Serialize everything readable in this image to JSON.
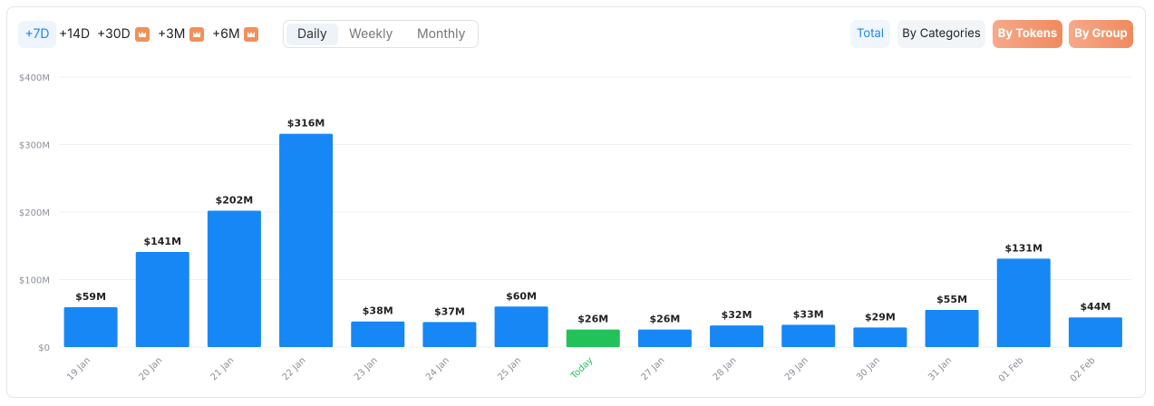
{
  "controls": {
    "ranges": [
      "+7D",
      "+14D",
      "+30D",
      "+3M",
      "+6M"
    ],
    "views": [
      "Daily",
      "Weekly",
      "Monthly"
    ],
    "groupings": [
      "Total",
      "By Categories",
      "By Tokens",
      "By Group"
    ]
  },
  "chart_data": {
    "type": "bar",
    "categories": [
      "19 Jan",
      "20 Jan",
      "21 Jan",
      "22 Jan",
      "23 Jan",
      "24 Jan",
      "25 Jan",
      "Today",
      "27 Jan",
      "28 Jan",
      "29 Jan",
      "30 Jan",
      "31 Jan",
      "01 Feb",
      "02 Feb"
    ],
    "values": [
      59,
      141,
      202,
      316,
      38,
      37,
      60,
      26,
      26,
      32,
      33,
      29,
      55,
      131,
      44
    ],
    "value_labels": [
      "$59M",
      "$141M",
      "$202M",
      "$316M",
      "$38M",
      "$37M",
      "$60M",
      "$26M",
      "$26M",
      "$32M",
      "$33M",
      "$29M",
      "$55M",
      "$131M",
      "$44M"
    ],
    "bar_colors": [
      "#1787f5",
      "#1787f5",
      "#1787f5",
      "#1787f5",
      "#1787f5",
      "#1787f5",
      "#1787f5",
      "#22c15a",
      "#1787f5",
      "#1787f5",
      "#1787f5",
      "#1787f5",
      "#1787f5",
      "#1787f5",
      "#1787f5"
    ],
    "x_label_colors": [
      "#8a8f98",
      "#8a8f98",
      "#8a8f98",
      "#8a8f98",
      "#8a8f98",
      "#8a8f98",
      "#8a8f98",
      "#22c15a",
      "#8a8f98",
      "#8a8f98",
      "#8a8f98",
      "#8a8f98",
      "#8a8f98",
      "#8a8f98",
      "#8a8f98"
    ],
    "ylim": [
      0,
      400
    ],
    "yticks": [
      {
        "value": 0,
        "label": "$0"
      },
      {
        "value": 100,
        "label": "$100M"
      },
      {
        "value": 200,
        "label": "$200M"
      },
      {
        "value": 300,
        "label": "$300M"
      },
      {
        "value": 400,
        "label": "$400M"
      }
    ],
    "grid": true
  }
}
